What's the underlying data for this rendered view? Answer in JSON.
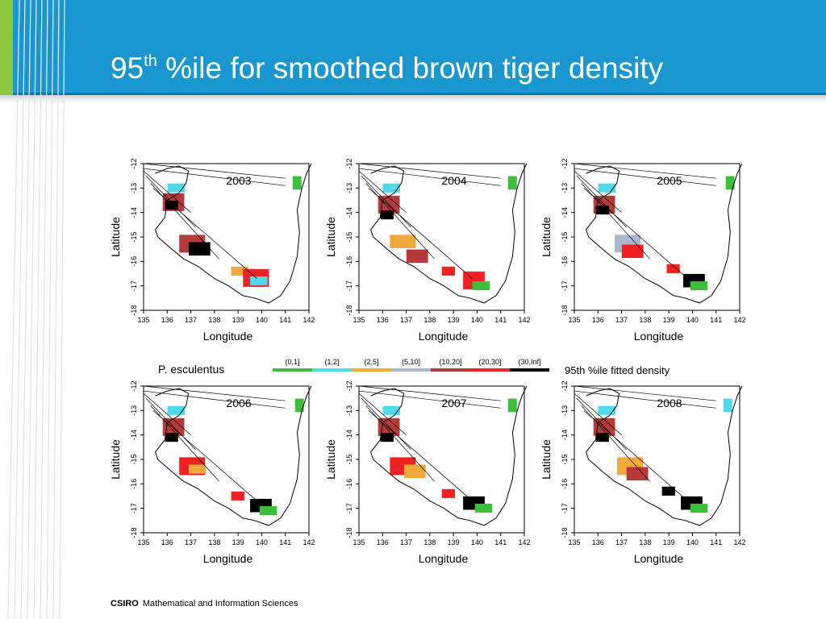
{
  "slide": {
    "title_main": "95",
    "title_sup": "th",
    "title_rest": " %ile for smoothed brown tiger density"
  },
  "footer": {
    "brand": "CSIRO",
    "division": "Mathematical and Information Sciences"
  },
  "colors": {
    "header": "#1b97cf",
    "accent": "#8cc63f",
    "density": [
      "#3dbf3d",
      "#4fd9ea",
      "#f2a93b",
      "#aab8cf",
      "#b73a3a",
      "#ee2222",
      "#000000"
    ]
  },
  "legend": {
    "species": "P. esculentus",
    "caption": "95th %ile fitted density",
    "classes": [
      "(0,1]",
      "(1,2]",
      "(2,5]",
      "(5,10]",
      "(10,20]",
      "(20,30]",
      "(30,Inf]"
    ]
  },
  "chart_data": [
    {
      "type": "heatmap",
      "title": "2003",
      "xlabel": "Longitude",
      "ylabel": "Latitude",
      "xlim": [
        135,
        142
      ],
      "ylim": [
        -18,
        -12
      ],
      "x_ticks": [
        "135",
        "136",
        "137",
        "138",
        "139",
        "140",
        "141",
        "142"
      ],
      "y_ticks": [
        "-12",
        "-13",
        "-14",
        "-15",
        "-16",
        "-17",
        "-18"
      ]
    },
    {
      "type": "heatmap",
      "title": "2004",
      "xlabel": "Longitude",
      "ylabel": "Latitude",
      "xlim": [
        135,
        142
      ],
      "ylim": [
        -18,
        -12
      ],
      "x_ticks": [
        "135",
        "136",
        "137",
        "138",
        "139",
        "140",
        "141",
        "142"
      ],
      "y_ticks": [
        "-12",
        "-13",
        "-14",
        "-15",
        "-16",
        "-17",
        "-18"
      ]
    },
    {
      "type": "heatmap",
      "title": "2005",
      "xlabel": "Longitude",
      "ylabel": "Latitude",
      "xlim": [
        135,
        142
      ],
      "ylim": [
        -18,
        -12
      ],
      "x_ticks": [
        "135",
        "136",
        "137",
        "138",
        "139",
        "140",
        "141",
        "142"
      ],
      "y_ticks": [
        "-12",
        "-13",
        "-14",
        "-15",
        "-16",
        "-17",
        "-18"
      ]
    },
    {
      "type": "heatmap",
      "title": "2006",
      "xlabel": "Longitude",
      "ylabel": "Latitude",
      "xlim": [
        135,
        142
      ],
      "ylim": [
        -18,
        -12
      ],
      "x_ticks": [
        "135",
        "136",
        "137",
        "138",
        "139",
        "140",
        "141",
        "142"
      ],
      "y_ticks": [
        "-12",
        "-13",
        "-14",
        "-15",
        "-16",
        "-17",
        "-18"
      ]
    },
    {
      "type": "heatmap",
      "title": "2007",
      "xlabel": "Longitude",
      "ylabel": "Latitude",
      "xlim": [
        135,
        142
      ],
      "ylim": [
        -18,
        -12
      ],
      "x_ticks": [
        "135",
        "136",
        "137",
        "138",
        "139",
        "140",
        "141",
        "142"
      ],
      "y_ticks": [
        "-12",
        "-13",
        "-14",
        "-15",
        "-16",
        "-17",
        "-18"
      ]
    },
    {
      "type": "heatmap",
      "title": "2008",
      "xlabel": "Longitude",
      "ylabel": "Latitude",
      "xlim": [
        135,
        142
      ],
      "ylim": [
        -18,
        -12
      ],
      "x_ticks": [
        "135",
        "136",
        "137",
        "138",
        "139",
        "140",
        "141",
        "142"
      ],
      "y_ticks": [
        "-12",
        "-13",
        "-14",
        "-15",
        "-16",
        "-17",
        "-18"
      ]
    }
  ]
}
